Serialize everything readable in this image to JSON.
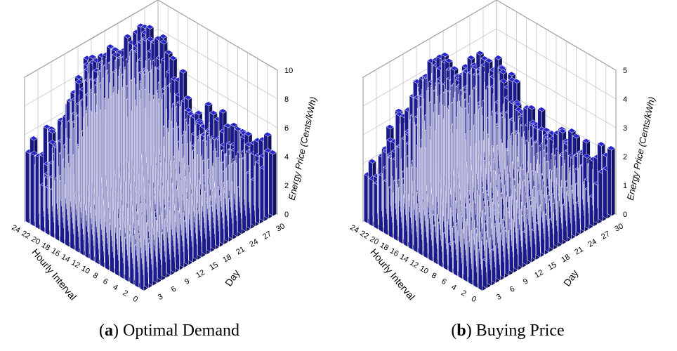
{
  "chart_data": [
    {
      "type": "bar3d",
      "panel": "a",
      "caption_letter": "a",
      "caption_text": ") Optimal Demand",
      "zlabel": "Energy Price (Cents/kWh)",
      "xlabel": "Hourly Interval",
      "ylabel": "Day",
      "x_ticks": [
        "0",
        "2",
        "4",
        "6",
        "8",
        "10",
        "12",
        "14",
        "16",
        "18",
        "20",
        "22",
        "24"
      ],
      "y_ticks": [
        "3",
        "6",
        "9",
        "12",
        "15",
        "18",
        "21",
        "24",
        "27",
        "30"
      ],
      "z_ticks": [
        "0",
        "2",
        "4",
        "6",
        "8",
        "10"
      ],
      "zlim": [
        0,
        10
      ],
      "hours": 24,
      "days": 30,
      "bar_color": "#1a1a8c",
      "profile": {
        "base": 4.0,
        "peaks": [
          {
            "hour": 20,
            "day": 15,
            "height": 5.5,
            "spread_h": 3.5,
            "spread_d": 6
          },
          {
            "hour": 14,
            "day": 8,
            "height": 3.5,
            "spread_h": 3,
            "spread_d": 5
          },
          {
            "hour": 22,
            "day": 26,
            "height": 3.0,
            "spread_h": 3,
            "spread_d": 4
          }
        ],
        "noise": 1.4
      }
    },
    {
      "type": "bar3d",
      "panel": "b",
      "caption_letter": "b",
      "caption_text": ") Buying Price",
      "zlabel": "Energy Price (Cents/kWh)",
      "xlabel": "Hourly Interval",
      "ylabel": "Day",
      "x_ticks": [
        "0",
        "2",
        "4",
        "6",
        "8",
        "10",
        "12",
        "14",
        "16",
        "18",
        "20",
        "22",
        "24"
      ],
      "y_ticks": [
        "3",
        "6",
        "9",
        "12",
        "15",
        "18",
        "21",
        "24",
        "27",
        "30"
      ],
      "z_ticks": [
        "0",
        "1",
        "2",
        "3",
        "4",
        "5"
      ],
      "zlim": [
        0,
        5
      ],
      "hours": 24,
      "days": 30,
      "bar_color": "#1a1a8c",
      "profile": {
        "base": 1.6,
        "peaks": [
          {
            "hour": 20,
            "day": 12,
            "height": 2.8,
            "spread_h": 3,
            "spread_d": 5
          },
          {
            "hour": 14,
            "day": 9,
            "height": 1.6,
            "spread_h": 2.5,
            "spread_d": 4
          },
          {
            "hour": 21,
            "day": 24,
            "height": 1.6,
            "spread_h": 3,
            "spread_d": 4
          }
        ],
        "noise": 0.7
      }
    }
  ]
}
